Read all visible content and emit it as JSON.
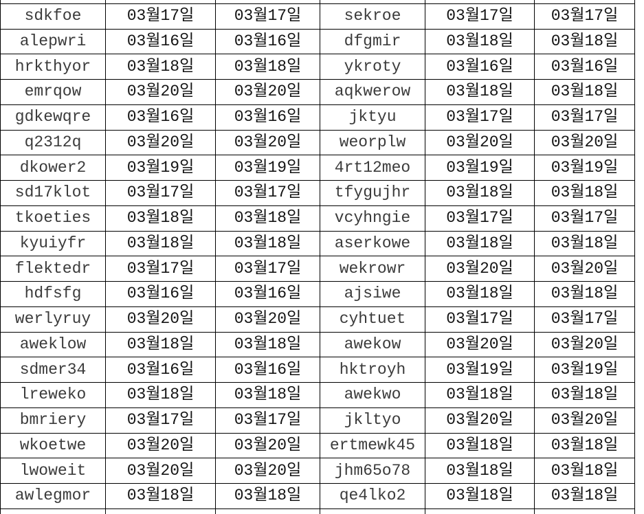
{
  "table": {
    "column_types": [
      "name",
      "date",
      "date",
      "name",
      "date",
      "date"
    ],
    "partial_top_row": [
      "",
      "",
      "",
      "",
      "",
      ""
    ],
    "rows": [
      [
        "sdkfoe",
        "03월17일",
        "03월17일",
        "sekroe",
        "03월17일",
        "03월17일"
      ],
      [
        "alepwri",
        "03월16일",
        "03월16일",
        "dfgmir",
        "03월18일",
        "03월18일"
      ],
      [
        "hrkthyor",
        "03월18일",
        "03월18일",
        "ykroty",
        "03월16일",
        "03월16일"
      ],
      [
        "emrqow",
        "03월20일",
        "03월20일",
        "aqkwerow",
        "03월18일",
        "03월18일"
      ],
      [
        "gdkewqre",
        "03월16일",
        "03월16일",
        "jktyu",
        "03월17일",
        "03월17일"
      ],
      [
        "q2312q",
        "03월20일",
        "03월20일",
        "weorplw",
        "03월20일",
        "03월20일"
      ],
      [
        "dkower2",
        "03월19일",
        "03월19일",
        "4rt12meo",
        "03월19일",
        "03월19일"
      ],
      [
        "sd17klot",
        "03월17일",
        "03월17일",
        "tfygujhr",
        "03월18일",
        "03월18일"
      ],
      [
        "tkoeties",
        "03월18일",
        "03월18일",
        "vcyhngie",
        "03월17일",
        "03월17일"
      ],
      [
        "kyuiyfr",
        "03월18일",
        "03월18일",
        "aserkowe",
        "03월18일",
        "03월18일"
      ],
      [
        "flektedr",
        "03월17일",
        "03월17일",
        "wekrowr",
        "03월20일",
        "03월20일"
      ],
      [
        "hdfsfg",
        "03월16일",
        "03월16일",
        "ajsiwe",
        "03월18일",
        "03월18일"
      ],
      [
        "werlyruy",
        "03월20일",
        "03월20일",
        "cyhtuet",
        "03월17일",
        "03월17일"
      ],
      [
        "aweklow",
        "03월18일",
        "03월18일",
        "awekow",
        "03월20일",
        "03월20일"
      ],
      [
        "sdmer34",
        "03월16일",
        "03월16일",
        "hktroyh",
        "03월19일",
        "03월19일"
      ],
      [
        "lreweko",
        "03월18일",
        "03월18일",
        "awekwo",
        "03월18일",
        "03월18일"
      ],
      [
        "bmriery",
        "03월17일",
        "03월17일",
        "jkltyo",
        "03월20일",
        "03월20일"
      ],
      [
        "wkoetwe",
        "03월20일",
        "03월20일",
        "ertmewk45",
        "03월18일",
        "03월18일"
      ],
      [
        "lwoweit",
        "03월20일",
        "03월20일",
        "jhm65o78",
        "03월18일",
        "03월18일"
      ],
      [
        "awlegmor",
        "03월18일",
        "03월18일",
        "qe4lko2",
        "03월18일",
        "03월18일"
      ]
    ],
    "partial_bottom_row": [
      "",
      "",
      "",
      "",
      "",
      ""
    ]
  },
  "colors": {
    "border": "#000000",
    "name_text": "#3b3b3b",
    "date_text": "#141414",
    "background": "#ffffff"
  }
}
